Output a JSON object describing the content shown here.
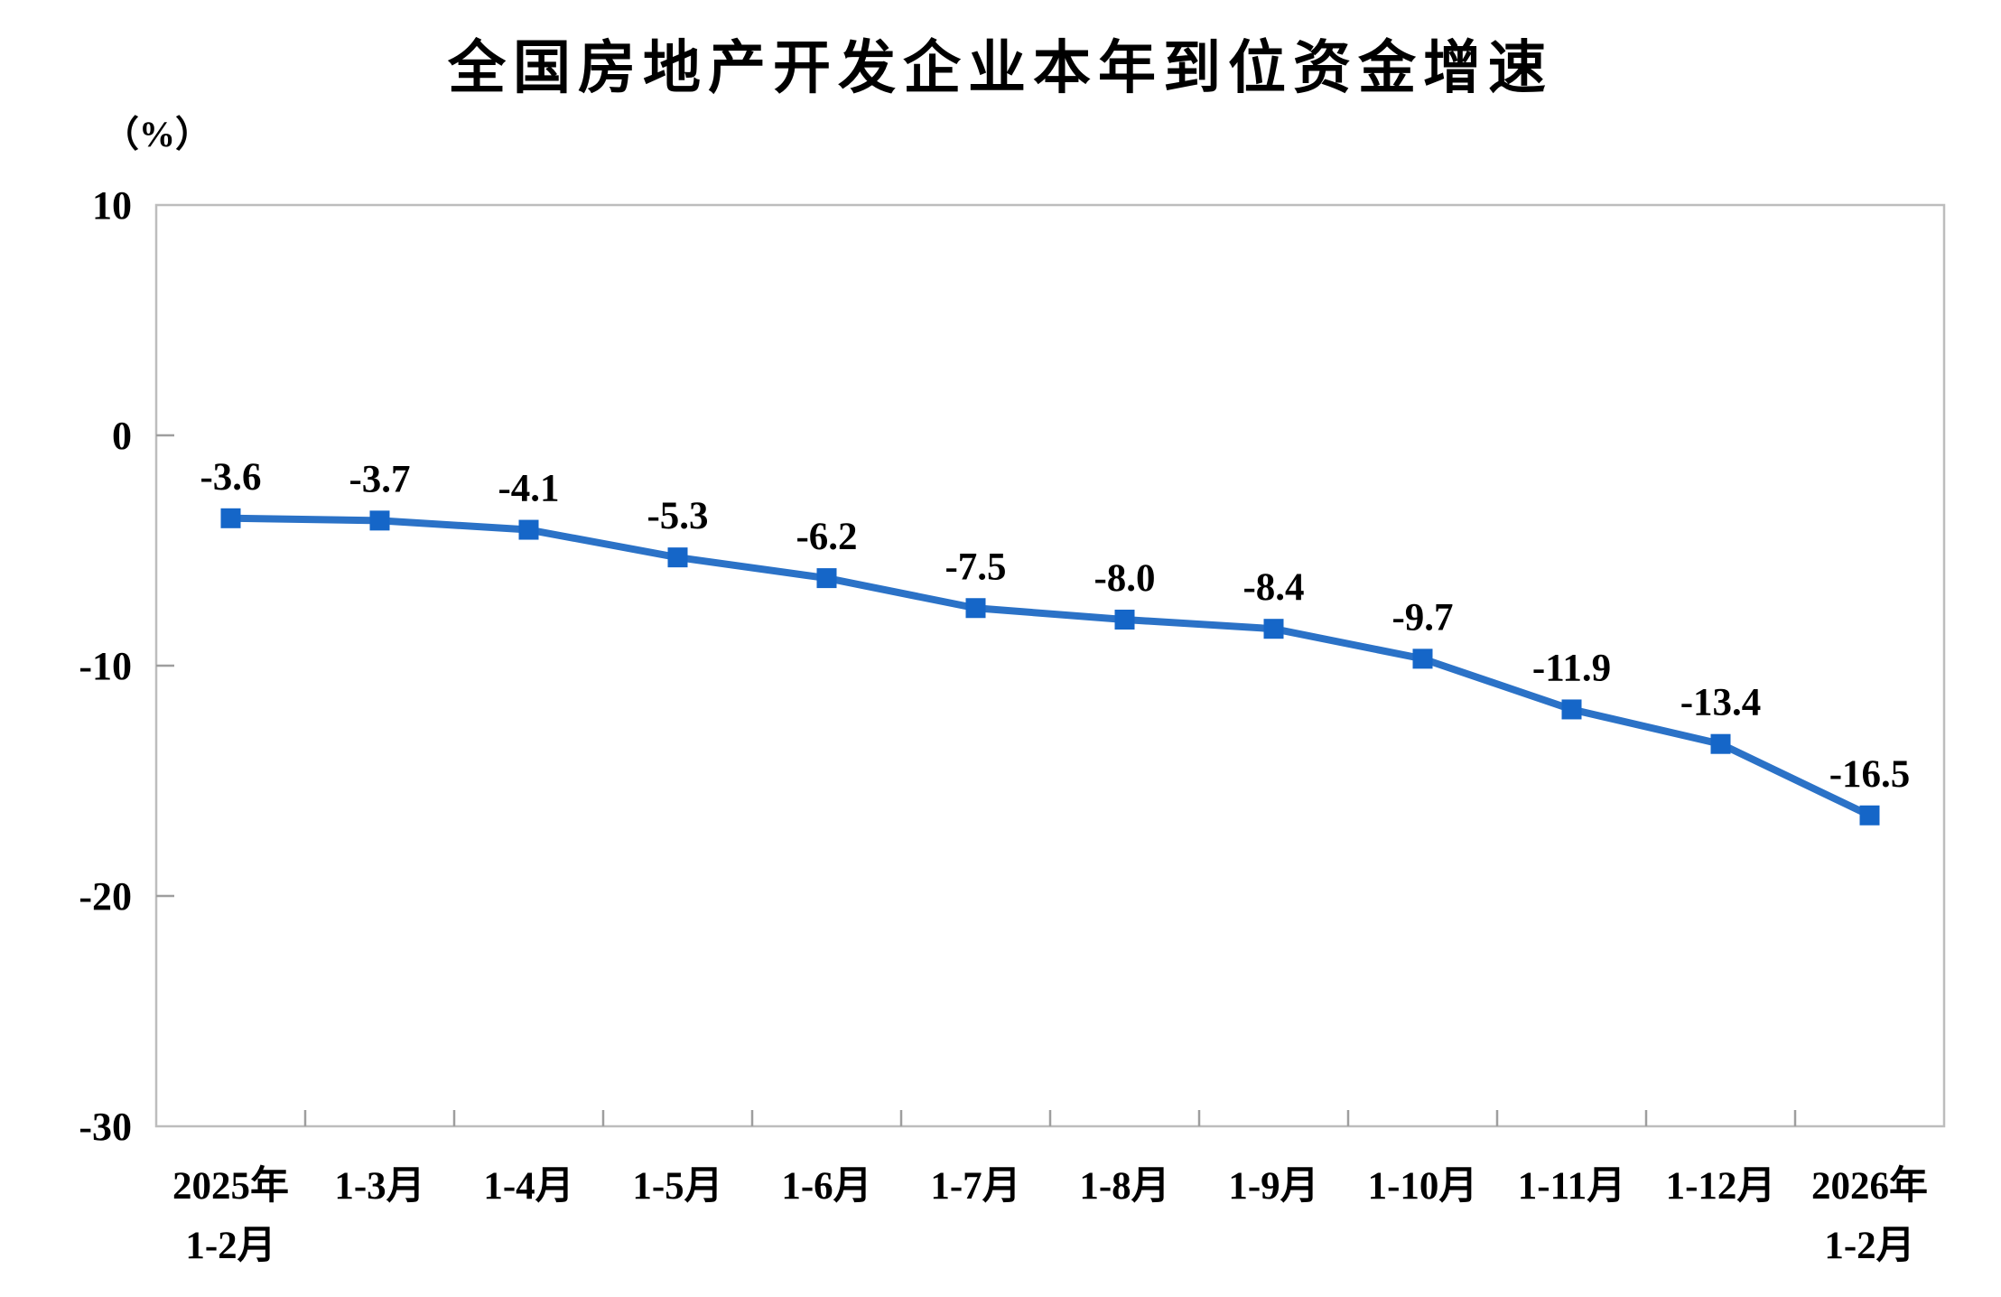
{
  "chart_data": {
    "type": "line",
    "title": "全国房地产开发企业本年到位资金增速",
    "unit_label": "（%）",
    "categories": [
      "2025年\n1-2月",
      "1-3月",
      "1-4月",
      "1-5月",
      "1-6月",
      "1-7月",
      "1-8月",
      "1-9月",
      "1-10月",
      "1-11月",
      "1-12月",
      "2026年\n1-2月"
    ],
    "values": [
      -3.6,
      -3.7,
      -4.1,
      -5.3,
      -6.2,
      -7.5,
      -8.0,
      -8.4,
      -9.7,
      -11.9,
      -13.4,
      -16.5
    ],
    "data_labels": [
      "-3.6",
      "-3.7",
      "-4.1",
      "-5.3",
      "-6.2",
      "-7.5",
      "-8.0",
      "-8.4",
      "-9.7",
      "-11.9",
      "-13.4",
      "-16.5"
    ],
    "y_ticks": [
      10,
      0,
      -10,
      -20,
      -30
    ],
    "y_tick_labels": [
      "10",
      "0",
      "-10",
      "-20",
      "-30"
    ],
    "ylim": [
      -30,
      10
    ],
    "xlabel": "",
    "ylabel": "（%）",
    "grid": "off",
    "legend": "none",
    "marker_shape": "square",
    "colors": {
      "line": "#2B72C7",
      "marker": "#1566C8",
      "frame": "#BDBDBD",
      "tick": "#9E9E9E",
      "text": "#000000",
      "background": "#FFFFFF"
    }
  }
}
